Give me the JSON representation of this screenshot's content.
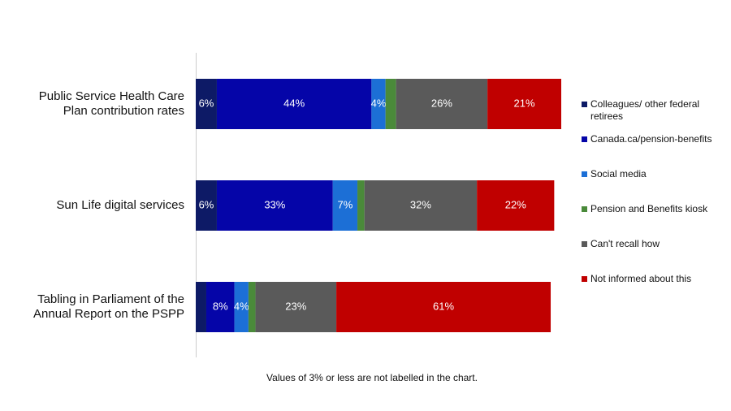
{
  "chart_data": {
    "type": "stacked-bar-horizontal",
    "categories": [
      "Public Service Health Care Plan contribution rates",
      "Sun Life digital services",
      "Tabling in Parliament of the Annual Report on the PSPP"
    ],
    "series": [
      {
        "name": "Colleagues/ other federal retirees",
        "color": "#0d1a66",
        "values": [
          6,
          6,
          3
        ],
        "value_labels": [
          "6%",
          "6%",
          null
        ]
      },
      {
        "name": "Canada.ca/pension-benefits",
        "color": "#0505a8",
        "values": [
          44,
          33,
          8
        ],
        "value_labels": [
          "44%",
          "33%",
          "8%"
        ]
      },
      {
        "name": "Social media",
        "color": "#1c6fd6",
        "values": [
          4,
          7,
          4
        ],
        "value_labels": [
          "4%",
          "7%",
          "4%"
        ]
      },
      {
        "name": "Pension and Benefits kiosk",
        "color": "#4a8a3a",
        "values": [
          3,
          2,
          2
        ],
        "value_labels": [
          null,
          null,
          null
        ]
      },
      {
        "name": "Can't recall how",
        "color": "#5a5a5a",
        "values": [
          26,
          32,
          23
        ],
        "value_labels": [
          "26%",
          "32%",
          "23%"
        ]
      },
      {
        "name": "Not informed about this",
        "color": "#c00000",
        "values": [
          21,
          22,
          61
        ],
        "value_labels": [
          "21%",
          "22%",
          "61%"
        ]
      }
    ],
    "xlim": [
      0,
      104
    ],
    "note": "Values of 3% or less are not labelled in the chart.",
    "legend": "right"
  }
}
